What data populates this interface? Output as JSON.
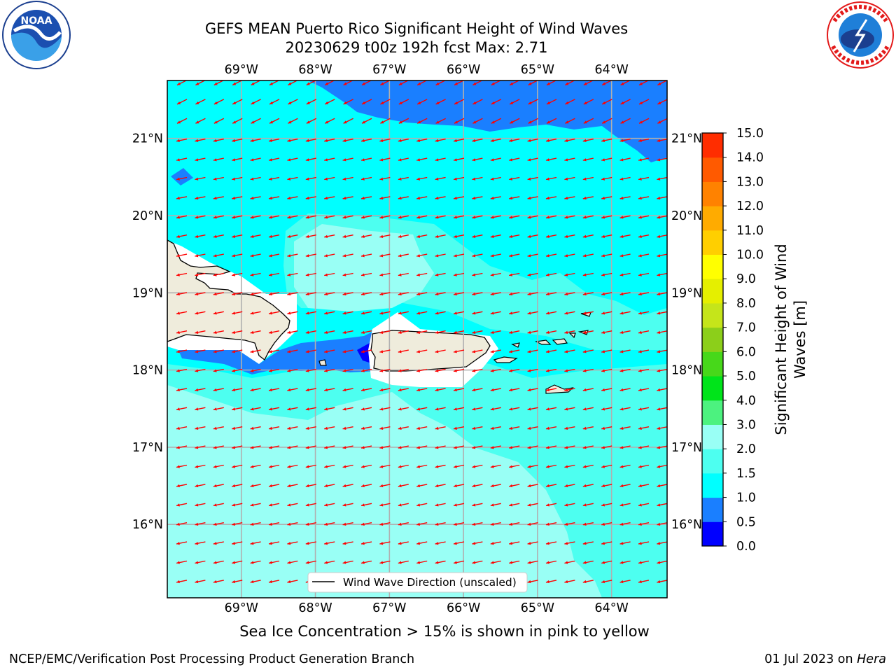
{
  "header": {
    "title_line1": "GEFS MEAN Puerto Rico Significant Height of Wind Waves",
    "title_line2": "20230629 t00z 192h fcst   Max: 2.71"
  },
  "logos": {
    "left_text": "NOAA",
    "left_ring_text": "NATIONAL OCEANIC AND ATMOSPHERIC ADMINISTRATION · U.S. DEPARTMENT OF COMMERCE",
    "right_ring_text": "NATIONAL WEATHER SERVICE"
  },
  "map": {
    "lon_labels": [
      "69°W",
      "68°W",
      "67°W",
      "66°W",
      "65°W",
      "64°W"
    ],
    "lat_labels": [
      "21°N",
      "20°N",
      "19°N",
      "18°N",
      "17°N",
      "16°N"
    ],
    "legend_label": "Wind Wave Direction (unscaled)",
    "arrow_color": "#ff0000",
    "land_color": "#efecdc",
    "extent": {
      "lon": [
        -70,
        -63.25
      ],
      "lat": [
        15.05,
        21.75
      ]
    }
  },
  "colorbar": {
    "title": "Significant Height of Wind Waves [m]",
    "title_line1": "Significant Height of Wind",
    "title_line2": "Waves [m]",
    "ticks": [
      "0.0",
      "0.5",
      "1.0",
      "1.5",
      "2.0",
      "3.0",
      "4.0",
      "5.0",
      "6.0",
      "7.0",
      "8.0",
      "9.0",
      "10.0",
      "11.0",
      "12.0",
      "13.0",
      "14.0",
      "15.0"
    ],
    "colors": [
      "#0000ff",
      "#1a7fff",
      "#00ffff",
      "#4dfff0",
      "#99fff5",
      "#4cf27f",
      "#00e41a",
      "#47d81a",
      "#8ccf1a",
      "#c5e51a",
      "#e5ef00",
      "#ffff00",
      "#ffcf00",
      "#ffab00",
      "#ff8200",
      "#ff5a00",
      "#ff2d00"
    ]
  },
  "notes": {
    "sea_ice": "Sea Ice Concentration > 15% is shown in pink to yellow",
    "footer_left": "NCEP/EMC/Verification Post Processing Product Generation Branch",
    "footer_right_prefix": "01 Jul 2023 on ",
    "footer_right_machine": "Hera"
  }
}
